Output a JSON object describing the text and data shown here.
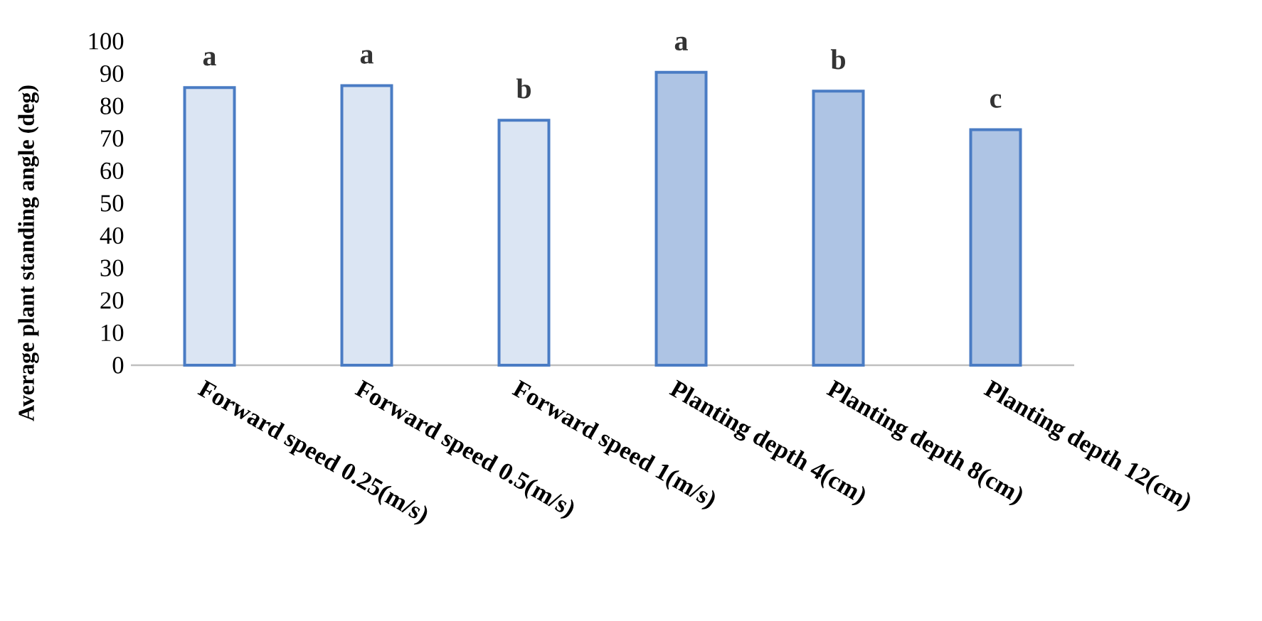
{
  "chart_data": {
    "type": "bar",
    "ylabel": "Average plant standing angle (deg)",
    "categories": [
      "Forward speed 0.25(m/s)",
      "Forward speed 0.5(m/s)",
      "Forward speed  1(m/s)",
      "Planting depth 4(cm)",
      "Planting depth 8(cm)",
      "Planting depth 12(cm)"
    ],
    "series": [
      {
        "color": "#4a7cc4",
        "values": [
          85.7,
          86.3,
          75.6,
          null,
          null,
          null
        ]
      },
      {
        "color": "#4a7cc4",
        "values": [
          null,
          null,
          null,
          90.4,
          84.6,
          72.7
        ]
      }
    ],
    "ylim": [
      0,
      100
    ],
    "yticks": [
      0,
      10,
      20,
      30,
      40,
      50,
      60,
      70,
      80,
      90,
      100
    ],
    "grid": false,
    "annotations": [
      {
        "text": "a",
        "x": "Forward speed 0.25(m/s)",
        "y": 85.7
      },
      {
        "text": "a",
        "x": "Forward speed 0.5(m/s)",
        "y": 86.3
      },
      {
        "text": "b",
        "x": "Forward speed  1(m/s)",
        "y": 75.6
      },
      {
        "text": "a",
        "x": "Planting depth 4(cm)",
        "y": 90.4
      },
      {
        "text": "b",
        "x": "Planting depth 8(cm)",
        "y": 84.6
      },
      {
        "text": "c",
        "x": "Planting depth 12(cm)",
        "y": 72.7
      }
    ]
  }
}
